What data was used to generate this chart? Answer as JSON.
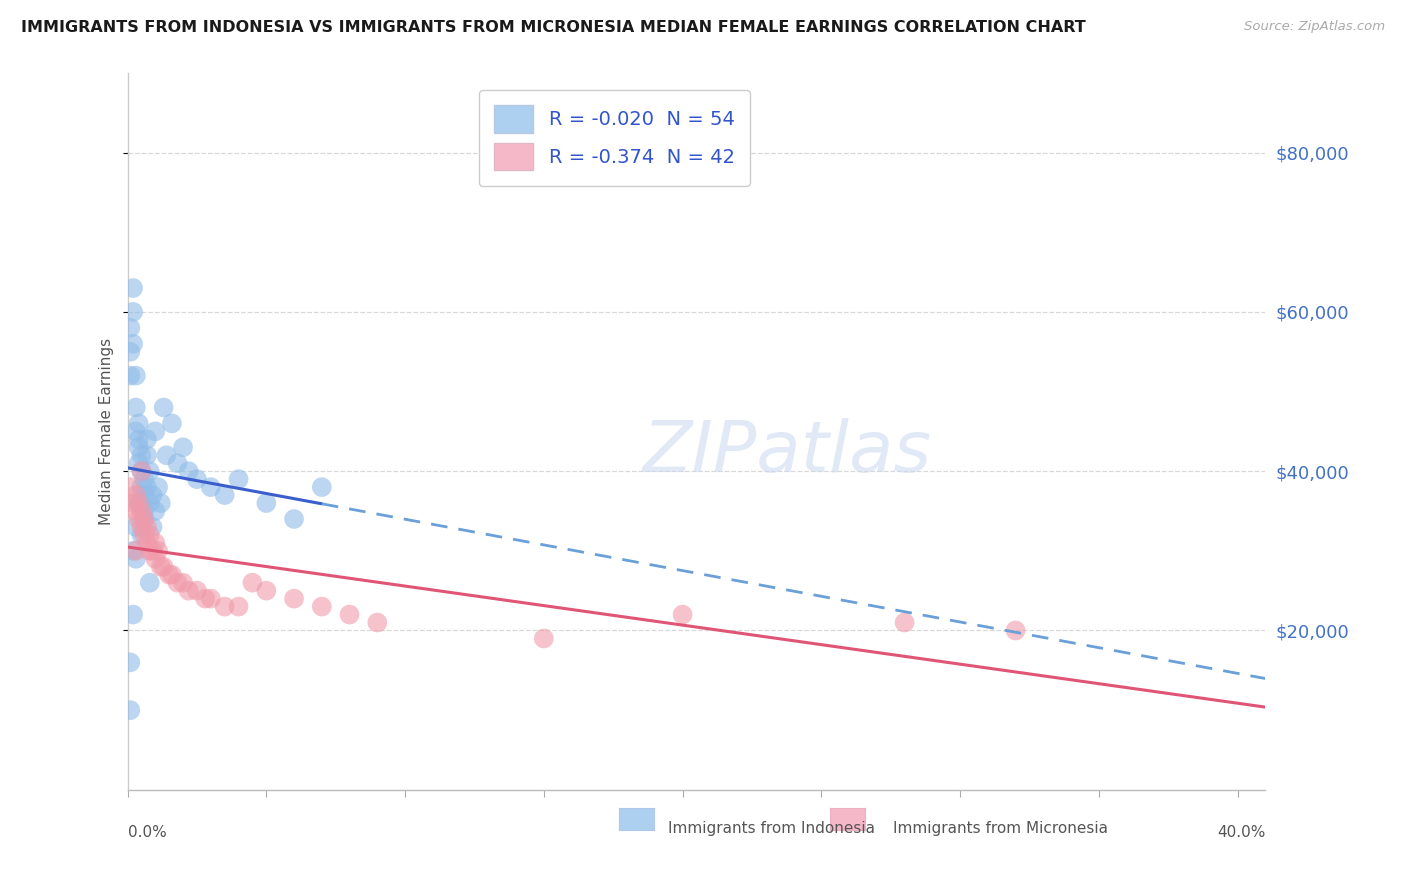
{
  "title": "IMMIGRANTS FROM INDONESIA VS IMMIGRANTS FROM MICRONESIA MEDIAN FEMALE EARNINGS CORRELATION CHART",
  "source": "Source: ZipAtlas.com",
  "ylabel": "Median Female Earnings",
  "r_indo": -0.02,
  "n_indo": 54,
  "r_micro": -0.374,
  "n_micro": 42,
  "indonesia_color": "#90bce8",
  "micronesia_color": "#f09aaa",
  "trendline_indonesia_solid_color": "#3a5fcd",
  "trendline_indonesia_dash_color": "#6a9fd8",
  "trendline_micronesia_color": "#e05575",
  "legend_indo_patch": "#aed0f0",
  "legend_micro_patch": "#f4b8c8",
  "legend_text_color": "#3355cc",
  "ytick_color": "#4472c4",
  "ytick_labels": [
    "$20,000",
    "$40,000",
    "$60,000",
    "$80,000"
  ],
  "ytick_values": [
    20000,
    40000,
    60000,
    80000
  ],
  "xlim": [
    0.0,
    0.41
  ],
  "ylim": [
    0.0,
    90000
  ],
  "trendline_solid_end": 0.07,
  "trendline_dash_start": 0.07,
  "grid_color": "#d8d8d8",
  "background_color": "#ffffff",
  "bottom_legend_indonesia": "Immigrants from Indonesia",
  "bottom_legend_micronesia": "Immigrants from Micronesia",
  "watermark": "ZIPatlas",
  "indo_x": [
    0.001,
    0.001,
    0.001,
    0.002,
    0.002,
    0.002,
    0.003,
    0.003,
    0.003,
    0.004,
    0.004,
    0.004,
    0.004,
    0.005,
    0.005,
    0.005,
    0.005,
    0.006,
    0.006,
    0.006,
    0.007,
    0.007,
    0.007,
    0.008,
    0.008,
    0.009,
    0.009,
    0.01,
    0.01,
    0.011,
    0.012,
    0.013,
    0.014,
    0.016,
    0.018,
    0.02,
    0.022,
    0.025,
    0.03,
    0.035,
    0.04,
    0.05,
    0.06,
    0.07,
    0.005,
    0.006,
    0.003,
    0.004,
    0.002,
    0.001,
    0.008,
    0.002,
    0.003,
    0.001
  ],
  "indo_y": [
    55000,
    58000,
    52000,
    63000,
    60000,
    56000,
    48000,
    45000,
    52000,
    44000,
    41000,
    46000,
    43000,
    40000,
    38000,
    42000,
    36000,
    39000,
    35000,
    37000,
    42000,
    38000,
    44000,
    36000,
    40000,
    37000,
    33000,
    45000,
    35000,
    38000,
    36000,
    48000,
    42000,
    46000,
    41000,
    43000,
    40000,
    39000,
    38000,
    37000,
    39000,
    36000,
    34000,
    38000,
    32000,
    34000,
    33000,
    36000,
    22000,
    16000,
    26000,
    30000,
    29000,
    10000
  ],
  "micro_x": [
    0.001,
    0.002,
    0.003,
    0.003,
    0.004,
    0.004,
    0.005,
    0.005,
    0.006,
    0.006,
    0.007,
    0.007,
    0.008,
    0.008,
    0.009,
    0.01,
    0.01,
    0.011,
    0.012,
    0.013,
    0.015,
    0.016,
    0.018,
    0.02,
    0.022,
    0.025,
    0.028,
    0.03,
    0.035,
    0.04,
    0.045,
    0.05,
    0.06,
    0.07,
    0.08,
    0.09,
    0.15,
    0.2,
    0.28,
    0.32,
    0.005,
    0.003
  ],
  "micro_y": [
    38000,
    36000,
    37000,
    35000,
    34000,
    36000,
    33000,
    35000,
    32000,
    34000,
    31000,
    33000,
    30000,
    32000,
    30000,
    31000,
    29000,
    30000,
    28000,
    28000,
    27000,
    27000,
    26000,
    26000,
    25000,
    25000,
    24000,
    24000,
    23000,
    23000,
    26000,
    25000,
    24000,
    23000,
    22000,
    21000,
    19000,
    22000,
    21000,
    20000,
    40000,
    30000
  ]
}
